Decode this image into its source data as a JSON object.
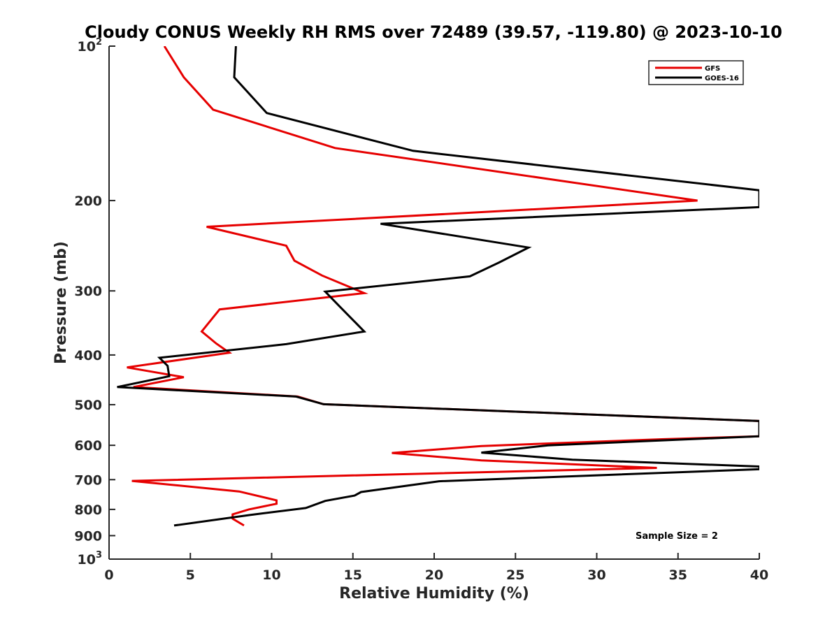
{
  "chart_data": {
    "type": "line",
    "title": "Cloudy CONUS Weekly RH RMS over 72489 (39.57, -119.80) @ 2023-10-10",
    "xlabel": "Relative Humidity (%)",
    "ylabel": "Pressure (mb)",
    "xlim": [
      0,
      40
    ],
    "ylim": [
      100,
      1000
    ],
    "y_scale": "log",
    "y_reversed": true,
    "xticks": [
      0,
      5,
      10,
      15,
      20,
      25,
      30,
      35,
      40
    ],
    "yticks": [
      {
        "value": 100,
        "base": "10",
        "exp": "2"
      },
      {
        "value": 200,
        "label": "200"
      },
      {
        "value": 300,
        "label": "300"
      },
      {
        "value": 400,
        "label": "400"
      },
      {
        "value": 500,
        "label": "500"
      },
      {
        "value": 600,
        "label": "600"
      },
      {
        "value": 700,
        "label": "700"
      },
      {
        "value": 800,
        "label": "800"
      },
      {
        "value": 900,
        "label": "900"
      },
      {
        "value": 1000,
        "base": "10",
        "exp": "3"
      }
    ],
    "grid": false,
    "legend_position": "top-right",
    "annotation": "Sample Size = 2",
    "series": [
      {
        "name": "GFS",
        "color": "#e60000",
        "points": [
          [
            3.4,
            100
          ],
          [
            4.6,
            115
          ],
          [
            6.4,
            133
          ],
          [
            13.9,
            158
          ],
          [
            36.2,
            200
          ],
          [
            6.0,
            225
          ],
          [
            10.9,
            245
          ],
          [
            11.4,
            262
          ],
          [
            13.1,
            280
          ],
          [
            15.7,
            303
          ],
          [
            6.8,
            326
          ],
          [
            5.7,
            360
          ],
          [
            6.6,
            380
          ],
          [
            7.4,
            396
          ],
          [
            1.1,
            423
          ],
          [
            4.6,
            442
          ],
          [
            1.5,
            462
          ],
          [
            11.6,
            482
          ],
          [
            13.2,
            499
          ],
          [
            40,
            538
          ],
          [
            40,
            576
          ],
          [
            34.0,
            584
          ],
          [
            22.9,
            602
          ],
          [
            17.4,
            621
          ],
          [
            22.9,
            642
          ],
          [
            33.7,
            664
          ],
          [
            1.4,
            704
          ],
          [
            8.0,
            738
          ],
          [
            10.3,
            768
          ],
          [
            10.3,
            780
          ],
          [
            8.6,
            800
          ],
          [
            7.6,
            818
          ],
          [
            7.6,
            834
          ],
          [
            8.3,
            860
          ]
        ]
      },
      {
        "name": "GOES-16",
        "color": "#000000",
        "points": [
          [
            7.8,
            100
          ],
          [
            7.7,
            115
          ],
          [
            9.7,
            135
          ],
          [
            18.7,
            160
          ],
          [
            40,
            191
          ],
          [
            40,
            206
          ],
          [
            16.7,
            222
          ],
          [
            25.8,
            247
          ],
          [
            24.0,
            264
          ],
          [
            22.2,
            281
          ],
          [
            13.3,
            301
          ],
          [
            14.2,
            322
          ],
          [
            15.7,
            360
          ],
          [
            10.9,
            381
          ],
          [
            3.1,
            405
          ],
          [
            3.6,
            420
          ],
          [
            3.7,
            440
          ],
          [
            0.5,
            462
          ],
          [
            11.5,
            482
          ],
          [
            13.2,
            499
          ],
          [
            40,
            538
          ],
          [
            40,
            576
          ],
          [
            27.0,
            600
          ],
          [
            22.9,
            620
          ],
          [
            28.5,
            640
          ],
          [
            40,
            660
          ],
          [
            40,
            668
          ],
          [
            20.3,
            705
          ],
          [
            15.5,
            740
          ],
          [
            15.1,
            752
          ],
          [
            13.3,
            770
          ],
          [
            12.1,
            795
          ],
          [
            8.7,
            820
          ],
          [
            4.0,
            860
          ]
        ]
      }
    ]
  }
}
